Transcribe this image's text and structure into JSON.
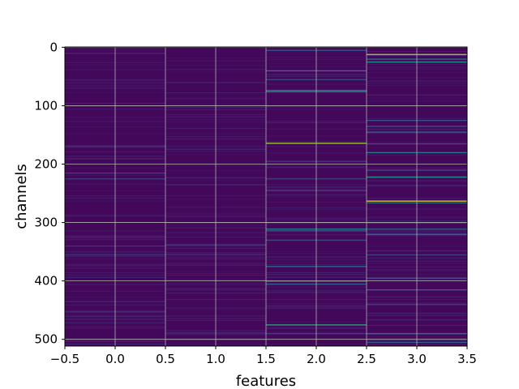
{
  "chart_data": {
    "type": "heatmap",
    "title": "",
    "xlabel": "features",
    "ylabel": "channels",
    "xlim": [
      -0.5,
      3.5
    ],
    "ylim": [
      511.5,
      -0.5
    ],
    "x_ticks": [
      -0.5,
      0.0,
      0.5,
      1.0,
      1.5,
      2.0,
      2.5,
      3.0,
      3.5
    ],
    "x_tick_labels": [
      "−0.5",
      "0.0",
      "0.5",
      "1.0",
      "1.5",
      "2.0",
      "2.5",
      "3.0",
      "3.5"
    ],
    "y_ticks": [
      0,
      100,
      200,
      300,
      400,
      500
    ],
    "y_tick_labels": [
      "0",
      "100",
      "200",
      "300",
      "400",
      "500"
    ],
    "grid": true,
    "colormap": "viridis",
    "columns": [
      0,
      1,
      2,
      3
    ],
    "rows": 512,
    "background_level": 0.02,
    "highlights": [
      {
        "column": 2,
        "rows": [
          [
            5,
            0.3
          ],
          [
            40,
            0.4
          ],
          [
            55,
            0.25
          ],
          [
            74,
            0.55
          ],
          [
            76,
            0.35
          ],
          [
            164,
            0.88
          ],
          [
            195,
            0.2
          ],
          [
            225,
            0.2
          ],
          [
            245,
            0.22
          ],
          [
            300,
            0.25
          ],
          [
            311,
            0.45
          ],
          [
            314,
            0.3
          ],
          [
            330,
            0.2
          ],
          [
            375,
            0.4
          ],
          [
            400,
            0.55
          ],
          [
            405,
            0.3
          ],
          [
            475,
            0.65
          ],
          [
            490,
            0.2
          ]
        ]
      },
      {
        "column": 3,
        "rows": [
          [
            12,
            0.88
          ],
          [
            20,
            0.4
          ],
          [
            25,
            0.5
          ],
          [
            125,
            0.3
          ],
          [
            135,
            0.3
          ],
          [
            145,
            0.4
          ],
          [
            165,
            0.25
          ],
          [
            180,
            0.45
          ],
          [
            210,
            0.3
          ],
          [
            222,
            0.5
          ],
          [
            263,
            0.98
          ],
          [
            266,
            0.4
          ],
          [
            300,
            0.45
          ],
          [
            311,
            0.3
          ],
          [
            320,
            0.4
          ],
          [
            355,
            0.2
          ],
          [
            395,
            0.3
          ],
          [
            415,
            0.35
          ],
          [
            440,
            0.2
          ],
          [
            490,
            0.45
          ],
          [
            505,
            0.3
          ]
        ]
      },
      {
        "column": 0,
        "rows": [
          [
            10,
            0.12
          ],
          [
            170,
            0.15
          ],
          [
            215,
            0.2
          ],
          [
            225,
            0.2
          ],
          [
            340,
            0.15
          ],
          [
            355,
            0.15
          ],
          [
            435,
            0.12
          ],
          [
            460,
            0.12
          ],
          [
            500,
            0.12
          ]
        ]
      },
      {
        "column": 1,
        "rows": [
          [
            60,
            0.1
          ],
          [
            235,
            0.12
          ],
          [
            338,
            0.15
          ],
          [
            355,
            0.1
          ],
          [
            500,
            0.15
          ]
        ]
      }
    ]
  }
}
